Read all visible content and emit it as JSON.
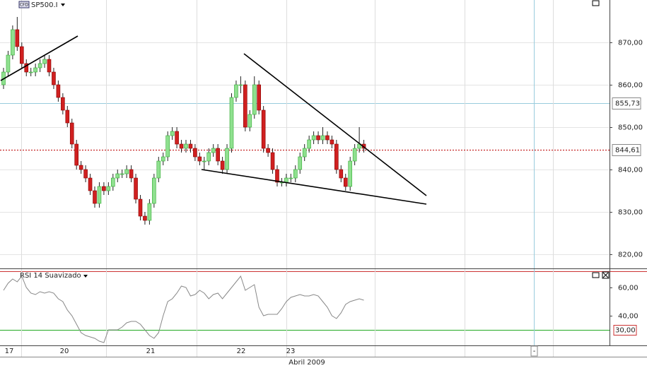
{
  "chart_data": {
    "type": "candlestick",
    "title": "SP500.I",
    "badge": "CFD",
    "ohlc": [
      [
        860,
        864,
        859,
        863
      ],
      [
        863,
        868,
        862,
        867
      ],
      [
        867,
        874,
        866,
        873
      ],
      [
        873,
        876,
        868,
        869
      ],
      [
        869,
        870,
        864,
        865
      ],
      [
        865,
        866,
        862,
        863
      ],
      [
        863,
        864,
        862,
        863
      ],
      [
        863,
        865,
        862,
        864
      ],
      [
        864,
        866,
        863,
        865
      ],
      [
        865,
        867,
        864,
        866
      ],
      [
        866,
        867,
        862,
        863
      ],
      [
        863,
        864,
        859,
        860
      ],
      [
        860,
        861,
        856,
        857
      ],
      [
        857,
        858,
        853,
        854
      ],
      [
        854,
        855,
        850,
        851
      ],
      [
        851,
        852,
        845,
        846
      ],
      [
        846,
        847,
        840,
        841
      ],
      [
        841,
        842,
        839,
        840
      ],
      [
        840,
        841,
        837,
        838
      ],
      [
        838,
        839,
        834,
        835
      ],
      [
        835,
        836,
        831,
        832
      ],
      [
        832,
        837,
        831,
        836
      ],
      [
        836,
        837,
        834,
        835
      ],
      [
        835,
        837,
        834,
        836
      ],
      [
        836,
        839,
        835,
        838
      ],
      [
        838,
        840,
        837,
        839
      ],
      [
        839,
        840,
        838,
        839
      ],
      [
        839,
        841,
        838,
        840
      ],
      [
        840,
        841,
        837,
        838
      ],
      [
        838,
        839,
        832,
        833
      ],
      [
        833,
        834,
        828,
        829
      ],
      [
        829,
        830,
        827,
        828
      ],
      [
        828,
        833,
        827,
        832
      ],
      [
        832,
        839,
        831,
        838
      ],
      [
        838,
        843,
        837,
        842
      ],
      [
        842,
        844,
        841,
        843
      ],
      [
        843,
        849,
        842,
        848
      ],
      [
        848,
        850,
        847,
        849
      ],
      [
        849,
        850,
        845,
        846
      ],
      [
        846,
        847,
        844,
        845
      ],
      [
        845,
        847,
        844,
        846
      ],
      [
        846,
        847,
        844,
        845
      ],
      [
        845,
        846,
        842,
        843
      ],
      [
        843,
        844,
        841,
        842
      ],
      [
        842,
        843,
        840,
        842
      ],
      [
        842,
        845,
        841,
        844
      ],
      [
        844,
        846,
        843,
        845
      ],
      [
        845,
        846,
        841,
        842
      ],
      [
        842,
        843,
        839,
        840
      ],
      [
        840,
        846,
        839,
        845
      ],
      [
        845,
        858,
        844,
        857
      ],
      [
        857,
        861,
        856,
        860
      ],
      [
        860,
        862,
        858,
        860
      ],
      [
        860,
        861,
        849,
        850
      ],
      [
        850,
        854,
        849,
        853
      ],
      [
        853,
        862,
        852,
        860
      ],
      [
        860,
        861,
        853,
        854
      ],
      [
        854,
        855,
        844,
        845
      ],
      [
        845,
        846,
        843,
        844
      ],
      [
        844,
        845,
        839,
        840
      ],
      [
        840,
        841,
        836,
        837
      ],
      [
        837,
        838,
        836,
        837
      ],
      [
        837,
        839,
        836,
        838
      ],
      [
        838,
        839,
        837,
        838
      ],
      [
        838,
        841,
        837,
        840
      ],
      [
        840,
        844,
        839,
        843
      ],
      [
        843,
        846,
        842,
        845
      ],
      [
        845,
        848,
        844,
        847
      ],
      [
        847,
        849,
        846,
        848
      ],
      [
        848,
        849,
        846,
        847
      ],
      [
        847,
        850,
        846,
        848
      ],
      [
        848,
        849,
        846,
        847
      ],
      [
        847,
        848,
        845,
        846
      ],
      [
        846,
        847,
        839,
        840
      ],
      [
        840,
        841,
        837,
        838
      ],
      [
        838,
        839,
        835,
        836
      ],
      [
        836,
        843,
        835,
        842
      ],
      [
        842,
        846,
        841,
        845
      ],
      [
        845,
        850,
        844,
        846
      ],
      [
        846,
        847,
        844,
        845
      ]
    ],
    "up_color": "#8fe08f",
    "down_color": "#d02020",
    "ylim": [
      816.67,
      880
    ],
    "yticks": [
      {
        "value": 820,
        "label": "820,00"
      },
      {
        "value": 830,
        "label": "830,00"
      },
      {
        "value": 840,
        "label": "840,00"
      },
      {
        "value": 850,
        "label": "850,00"
      },
      {
        "value": 860,
        "label": "860,00"
      },
      {
        "value": 870,
        "label": "870,00"
      }
    ],
    "last_price": {
      "value": 844.61,
      "label": "844,61"
    },
    "crosshair_price": {
      "value": 855.73,
      "label": "855,73"
    },
    "x_labels": [
      "17",
      "20",
      "21",
      "22",
      "23"
    ],
    "x_axis_title": "Abril 2009",
    "crosshair_x_label": "-",
    "rsi": {
      "title": "RSI 14 Suavizado",
      "values": [
        58,
        63,
        66,
        64,
        68,
        60,
        56,
        55,
        57,
        56,
        57,
        56,
        52,
        50,
        44,
        40,
        34,
        28,
        26,
        25,
        24,
        22,
        21,
        30,
        30,
        30,
        32,
        35,
        36,
        36,
        34,
        30,
        26,
        24,
        28,
        40,
        50,
        52,
        56,
        61,
        60,
        54,
        55,
        58,
        56,
        52,
        55,
        56,
        52,
        56,
        60,
        64,
        68,
        58,
        60,
        62,
        46,
        40,
        41,
        41,
        41,
        45,
        50,
        53,
        54,
        55,
        54,
        54,
        55,
        54,
        50,
        46,
        40,
        38,
        42,
        48,
        50,
        51,
        52,
        51
      ],
      "ylim": [
        20,
        71.5
      ],
      "yticks": [
        {
          "value": 40,
          "label": "40,00"
        },
        {
          "value": 60,
          "label": "60,00"
        }
      ],
      "level": {
        "value": 30,
        "label": "30,00"
      }
    }
  }
}
